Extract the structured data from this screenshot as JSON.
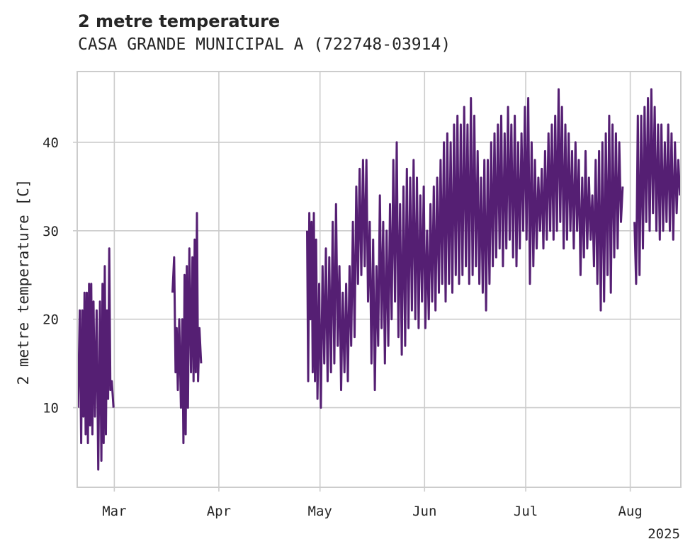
{
  "chart_data": {
    "type": "line",
    "title": "2 metre temperature",
    "subtitle": "CASA GRANDE MUNICIPAL A (722748-03914)",
    "ylabel": "2 metre temperature [C]",
    "xlabel": "",
    "x_ticks": [
      "Mar",
      "Apr",
      "May",
      "Jun",
      "Jul",
      "Aug"
    ],
    "x_tick_dates": [
      "2025-03-01",
      "2025-04-01",
      "2025-05-01",
      "2025-06-01",
      "2025-07-01",
      "2025-08-01"
    ],
    "x_offset_label": "2025",
    "xlim": [
      "2025-02-18",
      "2025-08-16"
    ],
    "y_ticks": [
      10,
      20,
      30,
      40
    ],
    "ylim": [
      1.0,
      48.0
    ],
    "grid": true,
    "line_color": "#551f73",
    "series": [
      {
        "values_note": "",
        "points": [
          [
            "2025-02-18",
            10
          ],
          [
            "2025-02-18",
            21
          ],
          [
            "2025-02-19",
            6
          ],
          [
            "2025-02-19",
            21
          ],
          [
            "2025-02-19",
            9
          ],
          [
            "2025-02-20",
            23
          ],
          [
            "2025-02-20",
            7
          ],
          [
            "2025-02-20",
            23
          ],
          [
            "2025-02-21",
            6
          ],
          [
            "2025-02-21",
            24
          ],
          [
            "2025-02-21",
            8
          ],
          [
            "2025-02-22",
            24
          ],
          [
            "2025-02-22",
            7
          ],
          [
            "2025-02-22",
            22
          ],
          [
            "2025-02-23",
            9
          ],
          [
            "2025-02-23",
            21
          ],
          [
            "2025-02-24",
            3
          ],
          [
            "2025-02-24",
            22
          ],
          [
            "2025-02-25",
            4
          ],
          [
            "2025-02-25",
            24
          ],
          [
            "2025-02-25",
            6
          ],
          [
            "2025-02-26",
            26
          ],
          [
            "2025-02-26",
            7
          ],
          [
            "2025-02-26",
            21
          ],
          [
            "2025-02-27",
            11
          ],
          [
            "2025-02-27",
            28
          ],
          [
            "2025-02-27",
            12
          ],
          [
            "2025-02-28",
            13
          ],
          [
            "2025-02-28",
            10
          ],
          [
            "2025-03-18",
            23
          ],
          [
            "2025-03-18",
            27
          ],
          [
            "2025-03-19",
            14
          ],
          [
            "2025-03-19",
            19
          ],
          [
            "2025-03-19",
            12
          ],
          [
            "2025-03-20",
            20
          ],
          [
            "2025-03-20",
            10
          ],
          [
            "2025-03-21",
            20
          ],
          [
            "2025-03-21",
            6
          ],
          [
            "2025-03-21",
            25
          ],
          [
            "2025-03-22",
            7
          ],
          [
            "2025-03-22",
            26
          ],
          [
            "2025-03-22",
            10
          ],
          [
            "2025-03-23",
            28
          ],
          [
            "2025-03-23",
            14
          ],
          [
            "2025-03-24",
            27
          ],
          [
            "2025-03-24",
            13
          ],
          [
            "2025-03-24",
            29
          ],
          [
            "2025-03-25",
            14
          ],
          [
            "2025-03-25",
            32
          ],
          [
            "2025-03-25",
            13
          ],
          [
            "2025-03-26",
            19
          ],
          [
            "2025-03-26",
            15
          ],
          [
            "2025-04-27",
            30
          ],
          [
            "2025-04-27",
            13
          ],
          [
            "2025-04-27",
            32
          ],
          [
            "2025-04-28",
            20
          ],
          [
            "2025-04-28",
            31
          ],
          [
            "2025-04-28",
            14
          ],
          [
            "2025-04-29",
            32
          ],
          [
            "2025-04-29",
            13
          ],
          [
            "2025-04-29",
            29
          ],
          [
            "2025-04-30",
            11
          ],
          [
            "2025-04-30",
            24
          ],
          [
            "2025-05-01",
            10
          ],
          [
            "2025-05-01",
            26
          ],
          [
            "2025-05-02",
            15
          ],
          [
            "2025-05-02",
            28
          ],
          [
            "2025-05-03",
            13
          ],
          [
            "2025-05-03",
            27
          ],
          [
            "2025-05-04",
            14
          ],
          [
            "2025-05-04",
            31
          ],
          [
            "2025-05-05",
            15
          ],
          [
            "2025-05-05",
            33
          ],
          [
            "2025-05-06",
            17
          ],
          [
            "2025-05-06",
            26
          ],
          [
            "2025-05-07",
            12
          ],
          [
            "2025-05-07",
            23
          ],
          [
            "2025-05-08",
            14
          ],
          [
            "2025-05-08",
            24
          ],
          [
            "2025-05-09",
            13
          ],
          [
            "2025-05-09",
            26
          ],
          [
            "2025-05-10",
            17
          ],
          [
            "2025-05-10",
            31
          ],
          [
            "2025-05-11",
            18
          ],
          [
            "2025-05-11",
            35
          ],
          [
            "2025-05-12",
            24
          ],
          [
            "2025-05-12",
            37
          ],
          [
            "2025-05-13",
            25
          ],
          [
            "2025-05-13",
            38
          ],
          [
            "2025-05-14",
            26
          ],
          [
            "2025-05-14",
            38
          ],
          [
            "2025-05-15",
            22
          ],
          [
            "2025-05-15",
            31
          ],
          [
            "2025-05-16",
            15
          ],
          [
            "2025-05-16",
            29
          ],
          [
            "2025-05-17",
            12
          ],
          [
            "2025-05-17",
            26
          ],
          [
            "2025-05-18",
            17
          ],
          [
            "2025-05-18",
            34
          ],
          [
            "2025-05-19",
            19
          ],
          [
            "2025-05-19",
            31
          ],
          [
            "2025-05-20",
            15
          ],
          [
            "2025-05-20",
            30
          ],
          [
            "2025-05-21",
            17
          ],
          [
            "2025-05-21",
            33
          ],
          [
            "2025-05-22",
            20
          ],
          [
            "2025-05-22",
            38
          ],
          [
            "2025-05-23",
            22
          ],
          [
            "2025-05-23",
            40
          ],
          [
            "2025-05-24",
            18
          ],
          [
            "2025-05-24",
            33
          ],
          [
            "2025-05-25",
            16
          ],
          [
            "2025-05-25",
            35
          ],
          [
            "2025-05-26",
            17
          ],
          [
            "2025-05-26",
            37
          ],
          [
            "2025-05-27",
            19
          ],
          [
            "2025-05-27",
            36
          ],
          [
            "2025-05-28",
            21
          ],
          [
            "2025-05-28",
            38
          ],
          [
            "2025-05-29",
            20
          ],
          [
            "2025-05-29",
            36
          ],
          [
            "2025-05-30",
            19
          ],
          [
            "2025-05-30",
            34
          ],
          [
            "2025-05-31",
            22
          ],
          [
            "2025-05-31",
            35
          ],
          [
            "2025-06-01",
            19
          ],
          [
            "2025-06-01",
            30
          ],
          [
            "2025-06-02",
            20
          ],
          [
            "2025-06-02",
            33
          ],
          [
            "2025-06-03",
            22
          ],
          [
            "2025-06-03",
            35
          ],
          [
            "2025-06-04",
            21
          ],
          [
            "2025-06-04",
            36
          ],
          [
            "2025-06-05",
            23
          ],
          [
            "2025-06-05",
            38
          ],
          [
            "2025-06-06",
            24
          ],
          [
            "2025-06-06",
            40
          ],
          [
            "2025-06-07",
            22
          ],
          [
            "2025-06-07",
            41
          ],
          [
            "2025-06-08",
            24
          ],
          [
            "2025-06-08",
            40
          ],
          [
            "2025-06-09",
            23
          ],
          [
            "2025-06-09",
            42
          ],
          [
            "2025-06-10",
            25
          ],
          [
            "2025-06-10",
            43
          ],
          [
            "2025-06-11",
            24
          ],
          [
            "2025-06-11",
            42
          ],
          [
            "2025-06-12",
            25
          ],
          [
            "2025-06-12",
            44
          ],
          [
            "2025-06-13",
            26
          ],
          [
            "2025-06-13",
            42
          ],
          [
            "2025-06-14",
            24
          ],
          [
            "2025-06-14",
            45
          ],
          [
            "2025-06-15",
            25
          ],
          [
            "2025-06-15",
            43
          ],
          [
            "2025-06-16",
            26
          ],
          [
            "2025-06-16",
            39
          ],
          [
            "2025-06-17",
            24
          ],
          [
            "2025-06-17",
            36
          ],
          [
            "2025-06-18",
            23
          ],
          [
            "2025-06-18",
            38
          ],
          [
            "2025-06-19",
            21
          ],
          [
            "2025-06-19",
            38
          ],
          [
            "2025-06-20",
            24
          ],
          [
            "2025-06-20",
            40
          ],
          [
            "2025-06-21",
            26
          ],
          [
            "2025-06-21",
            41
          ],
          [
            "2025-06-22",
            27
          ],
          [
            "2025-06-22",
            42
          ],
          [
            "2025-06-23",
            28
          ],
          [
            "2025-06-23",
            43
          ],
          [
            "2025-06-24",
            26
          ],
          [
            "2025-06-24",
            41
          ],
          [
            "2025-06-25",
            28
          ],
          [
            "2025-06-25",
            44
          ],
          [
            "2025-06-26",
            29
          ],
          [
            "2025-06-26",
            42
          ],
          [
            "2025-06-27",
            27
          ],
          [
            "2025-06-27",
            43
          ],
          [
            "2025-06-28",
            26
          ],
          [
            "2025-06-28",
            40
          ],
          [
            "2025-06-29",
            28
          ],
          [
            "2025-06-29",
            41
          ],
          [
            "2025-06-30",
            30
          ],
          [
            "2025-06-30",
            44
          ],
          [
            "2025-07-01",
            29
          ],
          [
            "2025-07-01",
            45
          ],
          [
            "2025-07-02",
            24
          ],
          [
            "2025-07-02",
            40
          ],
          [
            "2025-07-03",
            26
          ],
          [
            "2025-07-03",
            38
          ],
          [
            "2025-07-04",
            28
          ],
          [
            "2025-07-04",
            36
          ],
          [
            "2025-07-05",
            30
          ],
          [
            "2025-07-05",
            37
          ],
          [
            "2025-07-06",
            28
          ],
          [
            "2025-07-06",
            39
          ],
          [
            "2025-07-07",
            29
          ],
          [
            "2025-07-07",
            41
          ],
          [
            "2025-07-08",
            30
          ],
          [
            "2025-07-08",
            42
          ],
          [
            "2025-07-09",
            29
          ],
          [
            "2025-07-09",
            43
          ],
          [
            "2025-07-10",
            30
          ],
          [
            "2025-07-10",
            46
          ],
          [
            "2025-07-11",
            31
          ],
          [
            "2025-07-11",
            44
          ],
          [
            "2025-07-12",
            28
          ],
          [
            "2025-07-12",
            42
          ],
          [
            "2025-07-13",
            29
          ],
          [
            "2025-07-13",
            41
          ],
          [
            "2025-07-14",
            30
          ],
          [
            "2025-07-14",
            39
          ],
          [
            "2025-07-15",
            28
          ],
          [
            "2025-07-15",
            40
          ],
          [
            "2025-07-16",
            30
          ],
          [
            "2025-07-16",
            38
          ],
          [
            "2025-07-17",
            25
          ],
          [
            "2025-07-17",
            36
          ],
          [
            "2025-07-18",
            27
          ],
          [
            "2025-07-18",
            39
          ],
          [
            "2025-07-19",
            28
          ],
          [
            "2025-07-19",
            36
          ],
          [
            "2025-07-20",
            29
          ],
          [
            "2025-07-20",
            34
          ],
          [
            "2025-07-21",
            26
          ],
          [
            "2025-07-21",
            38
          ],
          [
            "2025-07-22",
            24
          ],
          [
            "2025-07-22",
            39
          ],
          [
            "2025-07-23",
            21
          ],
          [
            "2025-07-23",
            40
          ],
          [
            "2025-07-24",
            22
          ],
          [
            "2025-07-24",
            41
          ],
          [
            "2025-07-25",
            25
          ],
          [
            "2025-07-25",
            43
          ],
          [
            "2025-07-26",
            23
          ],
          [
            "2025-07-26",
            42
          ],
          [
            "2025-07-27",
            27
          ],
          [
            "2025-07-27",
            41
          ],
          [
            "2025-07-28",
            28
          ],
          [
            "2025-07-28",
            40
          ],
          [
            "2025-07-29",
            31
          ],
          [
            "2025-07-29",
            35
          ],
          [
            "2025-08-02",
            31
          ],
          [
            "2025-08-02",
            24
          ],
          [
            "2025-08-03",
            43
          ],
          [
            "2025-08-03",
            25
          ],
          [
            "2025-08-04",
            43
          ],
          [
            "2025-08-04",
            28
          ],
          [
            "2025-08-05",
            44
          ],
          [
            "2025-08-05",
            31
          ],
          [
            "2025-08-06",
            45
          ],
          [
            "2025-08-06",
            30
          ],
          [
            "2025-08-07",
            46
          ],
          [
            "2025-08-07",
            32
          ],
          [
            "2025-08-08",
            44
          ],
          [
            "2025-08-08",
            30
          ],
          [
            "2025-08-09",
            42
          ],
          [
            "2025-08-09",
            29
          ],
          [
            "2025-08-10",
            42
          ],
          [
            "2025-08-10",
            30
          ],
          [
            "2025-08-11",
            40
          ],
          [
            "2025-08-11",
            31
          ],
          [
            "2025-08-12",
            42
          ],
          [
            "2025-08-12",
            30
          ],
          [
            "2025-08-13",
            41
          ],
          [
            "2025-08-13",
            29
          ],
          [
            "2025-08-14",
            40
          ],
          [
            "2025-08-14",
            32
          ],
          [
            "2025-08-15",
            38
          ],
          [
            "2025-08-15",
            34
          ]
        ]
      }
    ]
  }
}
